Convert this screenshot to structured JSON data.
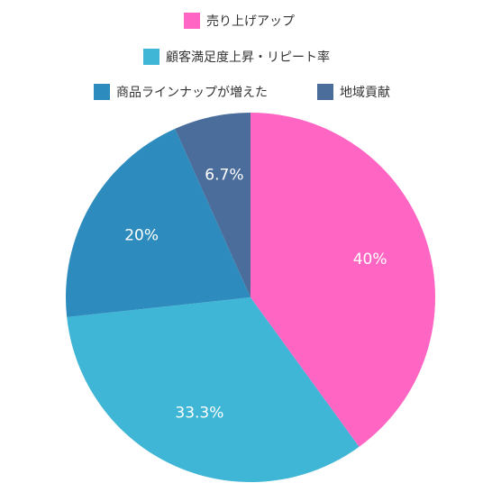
{
  "chart_data": {
    "type": "pie",
    "title": "",
    "legend_position": "top",
    "slices": [
      {
        "label": "売り上げアップ",
        "value": 40,
        "display": "40%",
        "color": "#ff66c4"
      },
      {
        "label": "顧客満足度上昇・リピート率",
        "value": 33.3,
        "display": "33.3%",
        "color": "#3fb6d6"
      },
      {
        "label": "商品ラインナップが増えた",
        "value": 20,
        "display": "20%",
        "color": "#2d8cbd"
      },
      {
        "label": "地域貢献",
        "value": 6.7,
        "display": "6.7%",
        "color": "#4a6d9c"
      }
    ]
  }
}
